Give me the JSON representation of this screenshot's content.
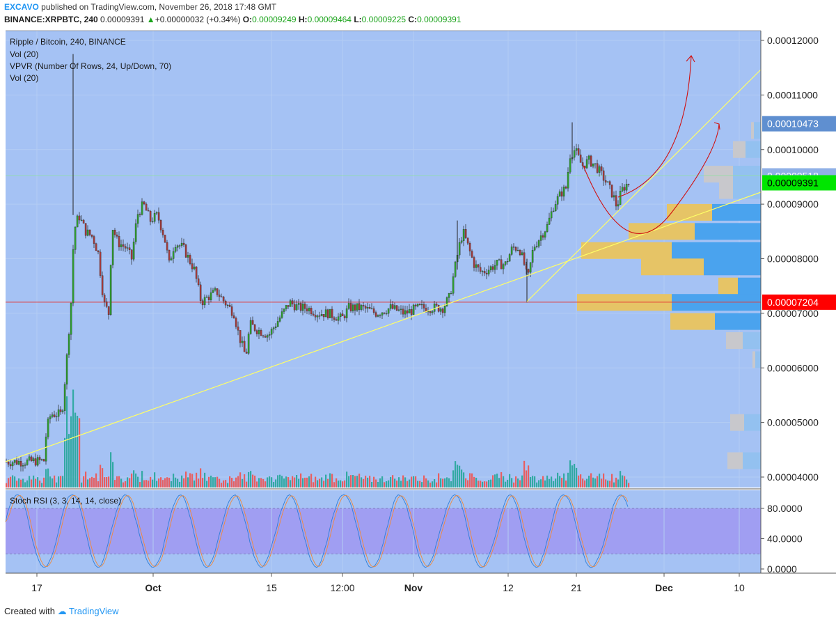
{
  "header": {
    "author": "EXCAVO",
    "published": "published on TradingView.com, November 26, 2018 17:48 GMT",
    "symbol": "BINANCE:XRPBTC, 240",
    "last": "0.00009391",
    "change": "+0.00000032 (+0.34%)",
    "o_label": "O:",
    "o": "0.00009249",
    "h_label": "H:",
    "h": "0.00009464",
    "l_label": "L:",
    "l": "0.00009225",
    "c_label": "C:",
    "c": "0.00009391"
  },
  "legend": {
    "title": "Ripple / Bitcoin, 240, BINANCE",
    "vol1": "Vol (20)",
    "vpvr": "VPVR (Number Of Rows, 24, Up/Down, 70)",
    "vol2": "Vol (20)",
    "stoch": "Stoch RSI (3, 3, 14, 14, close)"
  },
  "footer": {
    "created": "Created with",
    "brand": "TradingView"
  },
  "colors": {
    "pane_bg": "#a5c2f4",
    "rsi_band": "#a09ef2",
    "up": "#26a69a",
    "down": "#ef5350",
    "trendline": "#ffff66",
    "arrow": "#d01010",
    "support": "#e53935",
    "vp_up": "#4aa3ee",
    "vp_down": "#e6c466",
    "vp_up_light": "#93c1f0",
    "vp_down_light": "#c8c8cc"
  },
  "chart_data": [
    {
      "type": "candlestick",
      "title": "Ripple / Bitcoin, 240, BINANCE",
      "x_ticks": [
        "17",
        "Oct",
        "15",
        "12:00",
        "Nov",
        "12",
        "21",
        "Dec",
        "10"
      ],
      "y_ticks": [
        "0.00012000",
        "0.00011000",
        "0.00010000",
        "0.00009000",
        "0.00008000",
        "0.00007000",
        "0.00006000",
        "0.00005000",
        "0.00004000"
      ],
      "ylim": [
        3.7e-05,
        0.000123
      ],
      "price_tags": [
        {
          "label": "0.00010473",
          "value": 0.00010473,
          "color": "#5f8fd0"
        },
        {
          "label": "0.00009518",
          "value": 9.518e-05,
          "color": "#8fb0e6"
        },
        {
          "label": "0.00009391",
          "value": 9.391e-05,
          "color": "#00e600"
        },
        {
          "label": "0.00007204",
          "value": 7.204e-05,
          "color": "#ff0000"
        }
      ],
      "price_path": [
        [
          8,
          4.28e-05
        ],
        [
          35,
          4.28e-05
        ],
        [
          62,
          4.3e-05
        ],
        [
          66,
          4.9e-05
        ],
        [
          72,
          5.15e-05
        ],
        [
          88,
          5.15e-05
        ],
        [
          95,
          6.2e-05
        ],
        [
          101,
          7.2e-05
        ],
        [
          105,
          8.5e-05
        ],
        [
          112,
          8.8e-05
        ],
        [
          122,
          8.5e-05
        ],
        [
          132,
          8.4e-05
        ],
        [
          140,
          8.1e-05
        ],
        [
          148,
          7.2e-05
        ],
        [
          155,
          7e-05
        ],
        [
          160,
          8.6e-05
        ],
        [
          168,
          8.3e-05
        ],
        [
          180,
          8.2e-05
        ],
        [
          188,
          8e-05
        ],
        [
          196,
          8.8e-05
        ],
        [
          205,
          9e-05
        ],
        [
          215,
          8.7e-05
        ],
        [
          225,
          8.8e-05
        ],
        [
          235,
          8.4e-05
        ],
        [
          242,
          7.9e-05
        ],
        [
          250,
          8.3e-05
        ],
        [
          262,
          8.2e-05
        ],
        [
          278,
          7.8e-05
        ],
        [
          288,
          7.2e-05
        ],
        [
          298,
          7.3e-05
        ],
        [
          310,
          7.4e-05
        ],
        [
          322,
          7.2e-05
        ],
        [
          335,
          7e-05
        ],
        [
          342,
          6.6e-05
        ],
        [
          352,
          6.2e-05
        ],
        [
          358,
          6.8e-05
        ],
        [
          368,
          6.7e-05
        ],
        [
          385,
          6.6e-05
        ],
        [
          395,
          6.8e-05
        ],
        [
          405,
          7e-05
        ],
        [
          415,
          7.2e-05
        ],
        [
          428,
          7.1e-05
        ],
        [
          440,
          7.1e-05
        ],
        [
          455,
          7e-05
        ],
        [
          470,
          7e-05
        ],
        [
          490,
          6.9e-05
        ],
        [
          500,
          7.1e-05
        ],
        [
          520,
          7.1e-05
        ],
        [
          540,
          7e-05
        ],
        [
          560,
          7.1e-05
        ],
        [
          580,
          7e-05
        ],
        [
          600,
          7.1e-05
        ],
        [
          625,
          7.1e-05
        ],
        [
          635,
          7.1e-05
        ],
        [
          645,
          7.3e-05
        ],
        [
          652,
          7.8e-05
        ],
        [
          658,
          8.2e-05
        ],
        [
          664,
          8.5e-05
        ],
        [
          672,
          8.2e-05
        ],
        [
          680,
          7.9e-05
        ],
        [
          690,
          7.75e-05
        ],
        [
          700,
          7.8e-05
        ],
        [
          712,
          7.9e-05
        ],
        [
          725,
          7.9e-05
        ],
        [
          735,
          8.2e-05
        ],
        [
          745,
          8.2e-05
        ],
        [
          752,
          7.9e-05
        ],
        [
          757,
          7.6e-05
        ],
        [
          765,
          8.2e-05
        ],
        [
          775,
          8.4e-05
        ],
        [
          785,
          8.6e-05
        ],
        [
          795,
          9e-05
        ],
        [
          805,
          9.2e-05
        ],
        [
          812,
          9.3e-05
        ],
        [
          818,
          9.9e-05
        ],
        [
          825,
          0.0001
        ],
        [
          835,
          9.7e-05
        ],
        [
          845,
          9.8e-05
        ],
        [
          855,
          9.7e-05
        ],
        [
          865,
          9.5e-05
        ],
        [
          872,
          9.35e-05
        ],
        [
          880,
          9.15e-05
        ],
        [
          885,
          8.95e-05
        ],
        [
          892,
          9.25e-05
        ],
        [
          898,
          9.35e-05
        ],
        [
          903,
          9.39e-05
        ]
      ],
      "spikes": [
        {
          "x": 105,
          "high": 0.0001175,
          "low": 8.8e-05
        },
        {
          "x": 657,
          "high": 8.7e-05,
          "low": 7.8e-05
        },
        {
          "x": 757,
          "high": 8e-05,
          "low": 7.2e-05
        },
        {
          "x": 822,
          "high": 0.000105,
          "low": 9.8e-05
        }
      ],
      "support_level": 7.204e-05,
      "current_level": 9.391e-05,
      "volume_profile": [
        {
          "price": 0.0001035,
          "up": 10,
          "down": 4,
          "light": true
        },
        {
          "price": 0.0001,
          "up": 22,
          "down": 18,
          "light": true
        },
        {
          "price": 9.55e-05,
          "up": 40,
          "down": 42,
          "light": true
        },
        {
          "price": 9.25e-05,
          "up": 40,
          "down": 20,
          "light": true
        },
        {
          "price": 8.85e-05,
          "up": 70,
          "down": 65,
          "light": false
        },
        {
          "price": 8.5e-05,
          "up": 95,
          "down": 95,
          "light": false
        },
        {
          "price": 8.15e-05,
          "up": 128,
          "down": 130,
          "light": false
        },
        {
          "price": 7.85e-05,
          "up": 82,
          "down": 90,
          "light": false
        },
        {
          "price": 7.5e-05,
          "up": 33,
          "down": 28,
          "light": false
        },
        {
          "price": 7.2e-05,
          "up": 128,
          "down": 136,
          "light": false
        },
        {
          "price": 6.85e-05,
          "up": 66,
          "down": 64,
          "light": false
        },
        {
          "price": 6.5e-05,
          "up": 26,
          "down": 24,
          "light": true
        },
        {
          "price": 6.15e-05,
          "up": 8,
          "down": 4,
          "light": true
        },
        {
          "price": 5e-05,
          "up": 24,
          "down": 20,
          "light": true
        },
        {
          "price": 4.3e-05,
          "up": 26,
          "down": 22,
          "light": true
        }
      ]
    },
    {
      "type": "line",
      "title": "Stoch RSI (3, 3, 14, 14, close)",
      "y_ticks": [
        "80.0000",
        "40.0000",
        "0.0000"
      ],
      "ylim": [
        -8,
        102
      ],
      "band": [
        20,
        80
      ]
    }
  ]
}
